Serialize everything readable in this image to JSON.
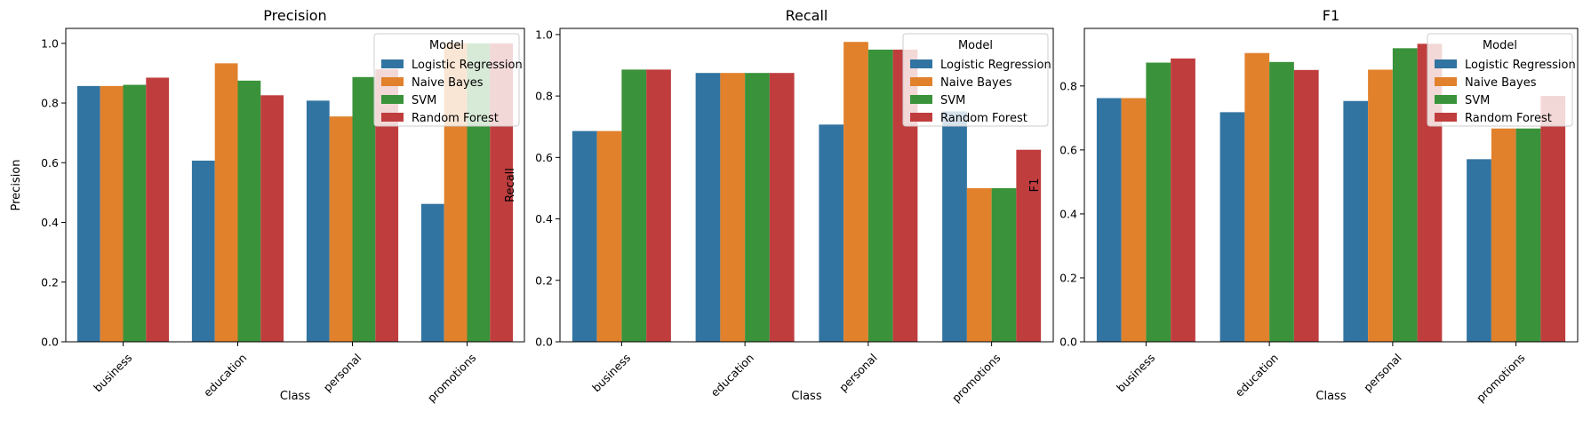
{
  "chart_data": [
    {
      "type": "bar",
      "title": "Precision",
      "xlabel": "Class",
      "ylabel": "Precision",
      "categories": [
        "business",
        "education",
        "personal",
        "promotions"
      ],
      "ylim": [
        0,
        1.05
      ],
      "yticks": [
        0.0,
        0.2,
        0.4,
        0.6,
        0.8,
        1.0
      ],
      "legend": {
        "title": "Model",
        "placement": "top-right"
      },
      "series": [
        {
          "name": "Logistic Regression",
          "values": [
            0.857,
            0.607,
            0.808,
            0.462
          ]
        },
        {
          "name": "Naive Bayes",
          "values": [
            0.857,
            0.933,
            0.755,
            1.0
          ]
        },
        {
          "name": "SVM",
          "values": [
            0.861,
            0.875,
            0.887,
            1.0
          ]
        },
        {
          "name": "Random Forest",
          "values": [
            0.885,
            0.826,
            0.913,
            1.0
          ]
        }
      ]
    },
    {
      "type": "bar",
      "title": "Recall",
      "xlabel": "Class",
      "ylabel": "Recall",
      "categories": [
        "business",
        "education",
        "personal",
        "promotions"
      ],
      "ylim": [
        0,
        1.02
      ],
      "yticks": [
        0.0,
        0.2,
        0.4,
        0.6,
        0.8,
        1.0
      ],
      "legend": {
        "title": "Model",
        "placement": "top-right"
      },
      "series": [
        {
          "name": "Logistic Regression",
          "values": [
            0.686,
            0.875,
            0.707,
            0.75
          ]
        },
        {
          "name": "Naive Bayes",
          "values": [
            0.686,
            0.875,
            0.976,
            0.5
          ]
        },
        {
          "name": "SVM",
          "values": [
            0.886,
            0.875,
            0.951,
            0.5
          ]
        },
        {
          "name": "Random Forest",
          "values": [
            0.886,
            0.875,
            0.951,
            0.625
          ]
        }
      ]
    },
    {
      "type": "bar",
      "title": "F1",
      "xlabel": "Class",
      "ylabel": "F1",
      "categories": [
        "business",
        "education",
        "personal",
        "promotions"
      ],
      "ylim": [
        0,
        0.98
      ],
      "yticks": [
        0.0,
        0.2,
        0.4,
        0.6,
        0.8
      ],
      "legend": {
        "title": "Model",
        "placement": "top-right"
      },
      "series": [
        {
          "name": "Logistic Regression",
          "values": [
            0.762,
            0.718,
            0.753,
            0.571
          ]
        },
        {
          "name": "Naive Bayes",
          "values": [
            0.762,
            0.903,
            0.851,
            0.667
          ]
        },
        {
          "name": "SVM",
          "values": [
            0.873,
            0.875,
            0.918,
            0.667
          ]
        },
        {
          "name": "Random Forest",
          "values": [
            0.886,
            0.85,
            0.932,
            0.769
          ]
        }
      ]
    }
  ],
  "colors": {
    "Logistic Regression": "#3274a1",
    "Naive Bayes": "#e1812c",
    "SVM": "#3a923a",
    "Random Forest": "#c03d3e"
  }
}
